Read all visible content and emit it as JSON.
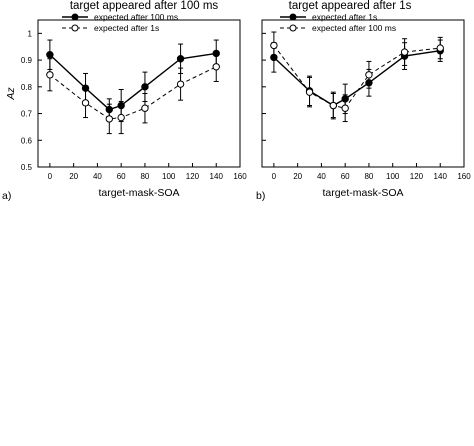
{
  "chart_data": [
    {
      "type": "line",
      "panel_label": "a)",
      "title": "target appeared after 100 ms",
      "xlabel": "target-mask-SOA",
      "ylabel": "Az",
      "xlim": [
        -10,
        160
      ],
      "ylim": [
        0.5,
        1.05
      ],
      "xticks": [
        "0",
        "20",
        "40",
        "60",
        "80",
        "100",
        "120",
        "140",
        "160"
      ],
      "yticks": [
        "0.5",
        "0.6",
        "0.7",
        "0.8",
        "0.9",
        "1"
      ],
      "legend_position": "top",
      "grid": false,
      "series": [
        {
          "name": "expected after 100 ms",
          "style": "solid",
          "marker": "filled-circle",
          "x": [
            0,
            30,
            50,
            60,
            80,
            110,
            140
          ],
          "y": [
            0.92,
            0.795,
            0.715,
            0.73,
            0.8,
            0.905,
            0.925
          ],
          "err": [
            0.055,
            0.055,
            0.04,
            0.06,
            0.055,
            0.055,
            0.05
          ]
        },
        {
          "name": "expected after 1s",
          "style": "dashed",
          "marker": "open-circle",
          "x": [
            0,
            30,
            50,
            60,
            80,
            110,
            140
          ],
          "y": [
            0.845,
            0.74,
            0.68,
            0.685,
            0.72,
            0.81,
            0.875
          ],
          "err": [
            0.06,
            0.055,
            0.055,
            0.06,
            0.055,
            0.06,
            0.055
          ]
        }
      ]
    },
    {
      "type": "line",
      "panel_label": "b)",
      "title": "target appeared after 1s",
      "xlabel": "target-mask-SOA",
      "ylabel": "",
      "xlim": [
        -10,
        160
      ],
      "ylim": [
        0.5,
        1.05
      ],
      "xticks": [
        "0",
        "20",
        "40",
        "60",
        "80",
        "100",
        "120",
        "140",
        "160"
      ],
      "yticks": [],
      "legend_position": "top",
      "grid": false,
      "series": [
        {
          "name": "expected after 1s",
          "style": "solid",
          "marker": "filled-circle",
          "x": [
            0,
            30,
            50,
            60,
            80,
            110,
            140
          ],
          "y": [
            0.91,
            0.785,
            0.73,
            0.755,
            0.815,
            0.915,
            0.935
          ],
          "err": [
            0.055,
            0.055,
            0.045,
            0.055,
            0.05,
            0.05,
            0.04
          ]
        },
        {
          "name": "expected after 100 ms",
          "style": "dashed",
          "marker": "open-circle",
          "x": [
            0,
            30,
            50,
            60,
            80,
            110,
            140
          ],
          "y": [
            0.955,
            0.78,
            0.73,
            0.72,
            0.845,
            0.93,
            0.945
          ],
          "err": [
            0.05,
            0.055,
            0.05,
            0.05,
            0.05,
            0.05,
            0.04
          ]
        }
      ]
    }
  ]
}
